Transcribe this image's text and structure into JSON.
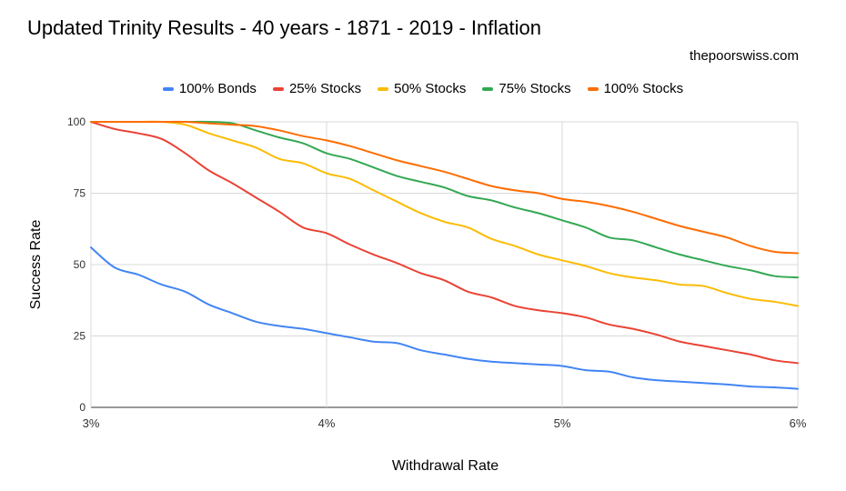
{
  "chart_data": {
    "type": "line",
    "title": "Updated Trinity Results - 40 years - 1871 - 2019 - Inflation",
    "subtitle": "thepoorswiss.com",
    "xlabel": "Withdrawal Rate",
    "ylabel": "Success Rate",
    "x_ticks": [
      "3%",
      "4%",
      "5%",
      "6%"
    ],
    "y_ticks": [
      "0",
      "25",
      "50",
      "75",
      "100"
    ],
    "xlim": [
      3,
      6
    ],
    "ylim": [
      0,
      100
    ],
    "grid": true,
    "legend_position": "top",
    "x": [
      3.0,
      3.1,
      3.2,
      3.3,
      3.4,
      3.5,
      3.6,
      3.7,
      3.8,
      3.9,
      4.0,
      4.1,
      4.2,
      4.3,
      4.4,
      4.5,
      4.6,
      4.7,
      4.8,
      4.9,
      5.0,
      5.1,
      5.2,
      5.3,
      5.4,
      5.5,
      5.6,
      5.7,
      5.8,
      5.9,
      6.0
    ],
    "series": [
      {
        "name": "100% Bonds",
        "color": "#4285f4",
        "values": [
          56,
          49,
          46.5,
          43,
          40.5,
          36,
          33,
          30,
          28.5,
          27.5,
          26,
          24.5,
          23,
          22.5,
          20,
          18.5,
          17,
          16,
          15.5,
          15,
          14.5,
          13,
          12.5,
          10.5,
          9.5,
          9,
          8.5,
          8,
          7.3,
          7,
          6.5
        ]
      },
      {
        "name": "25% Stocks",
        "color": "#ea4335",
        "values": [
          100,
          97.5,
          96,
          94,
          89,
          83,
          78.5,
          73.5,
          68.5,
          63,
          61,
          57,
          53.5,
          50.5,
          47,
          44.5,
          40.5,
          38.5,
          35.5,
          34,
          33,
          31.5,
          29,
          27.5,
          25.5,
          23,
          21.5,
          20,
          18.5,
          16.5,
          15.5
        ]
      },
      {
        "name": "50% Stocks",
        "color": "#fbbc04",
        "values": [
          100,
          100,
          100,
          100,
          99,
          96,
          93.5,
          91,
          87,
          85.5,
          82,
          80,
          76,
          72,
          68,
          65,
          63,
          59,
          56.5,
          53.5,
          51.5,
          49.5,
          47,
          45.5,
          44.5,
          43,
          42.5,
          40,
          38,
          37,
          35.5
        ]
      },
      {
        "name": "75% Stocks",
        "color": "#34a853",
        "values": [
          100,
          100,
          100,
          100,
          100,
          100,
          99.5,
          97,
          94.5,
          92.5,
          89,
          87,
          84,
          81,
          79,
          77,
          74,
          72.5,
          70,
          68,
          65.5,
          63,
          59.5,
          58.5,
          56,
          53.5,
          51.5,
          49.5,
          48,
          46,
          45.5
        ]
      },
      {
        "name": "100% Stocks",
        "color": "#ff6d01",
        "values": [
          100,
          100,
          100,
          100,
          100,
          99.5,
          99,
          98.5,
          97,
          95,
          93.5,
          91.5,
          89,
          86.5,
          84.5,
          82.5,
          80,
          77.5,
          76,
          75,
          73,
          72,
          70.5,
          68.5,
          66,
          63.5,
          61.5,
          59.5,
          56.5,
          54.5,
          54
        ]
      }
    ]
  }
}
